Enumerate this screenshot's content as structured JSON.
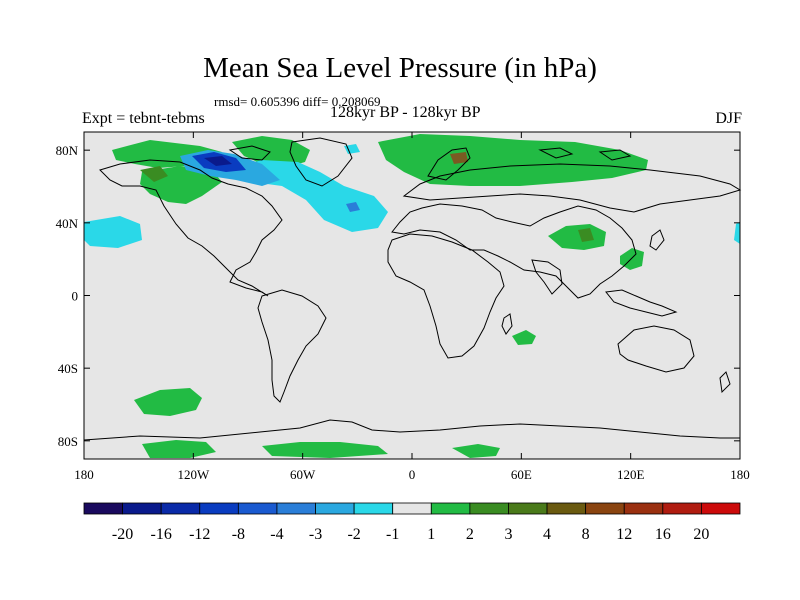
{
  "title": "Mean Sea Level Pressure (in hPa)",
  "stats": "rmsd= 0.605396 diff= 0.208069",
  "subtitle": "128kyr BP - 128kyr BP",
  "experiment": "Expt = tebnt-tebms",
  "season": "DJF",
  "map": {
    "lon_ticks": [
      "180",
      "120W",
      "60W",
      "0",
      "60E",
      "120E",
      "180"
    ],
    "lat_ticks": [
      "80N",
      "40N",
      "0",
      "40S",
      "80S"
    ],
    "background_color": "#e6e6e6",
    "coast_color": "#000000"
  },
  "colorbar": {
    "colors": [
      "#1a0a5e",
      "#0a1a8c",
      "#0a2aa8",
      "#0a3cc0",
      "#1a5ad0",
      "#2a7ed8",
      "#2aa8e0",
      "#2ad8e8",
      "#e6e6e6",
      "#22bb44",
      "#3a8c22",
      "#4a7a1a",
      "#6a5a10",
      "#8a4410",
      "#9a3010",
      "#b01c10",
      "#cc0a0a"
    ],
    "labels": [
      "-20",
      "-16",
      "-12",
      "-8",
      "-4",
      "-3",
      "-2",
      "-1",
      "1",
      "2",
      "3",
      "4",
      "8",
      "12",
      "16",
      "20"
    ]
  }
}
